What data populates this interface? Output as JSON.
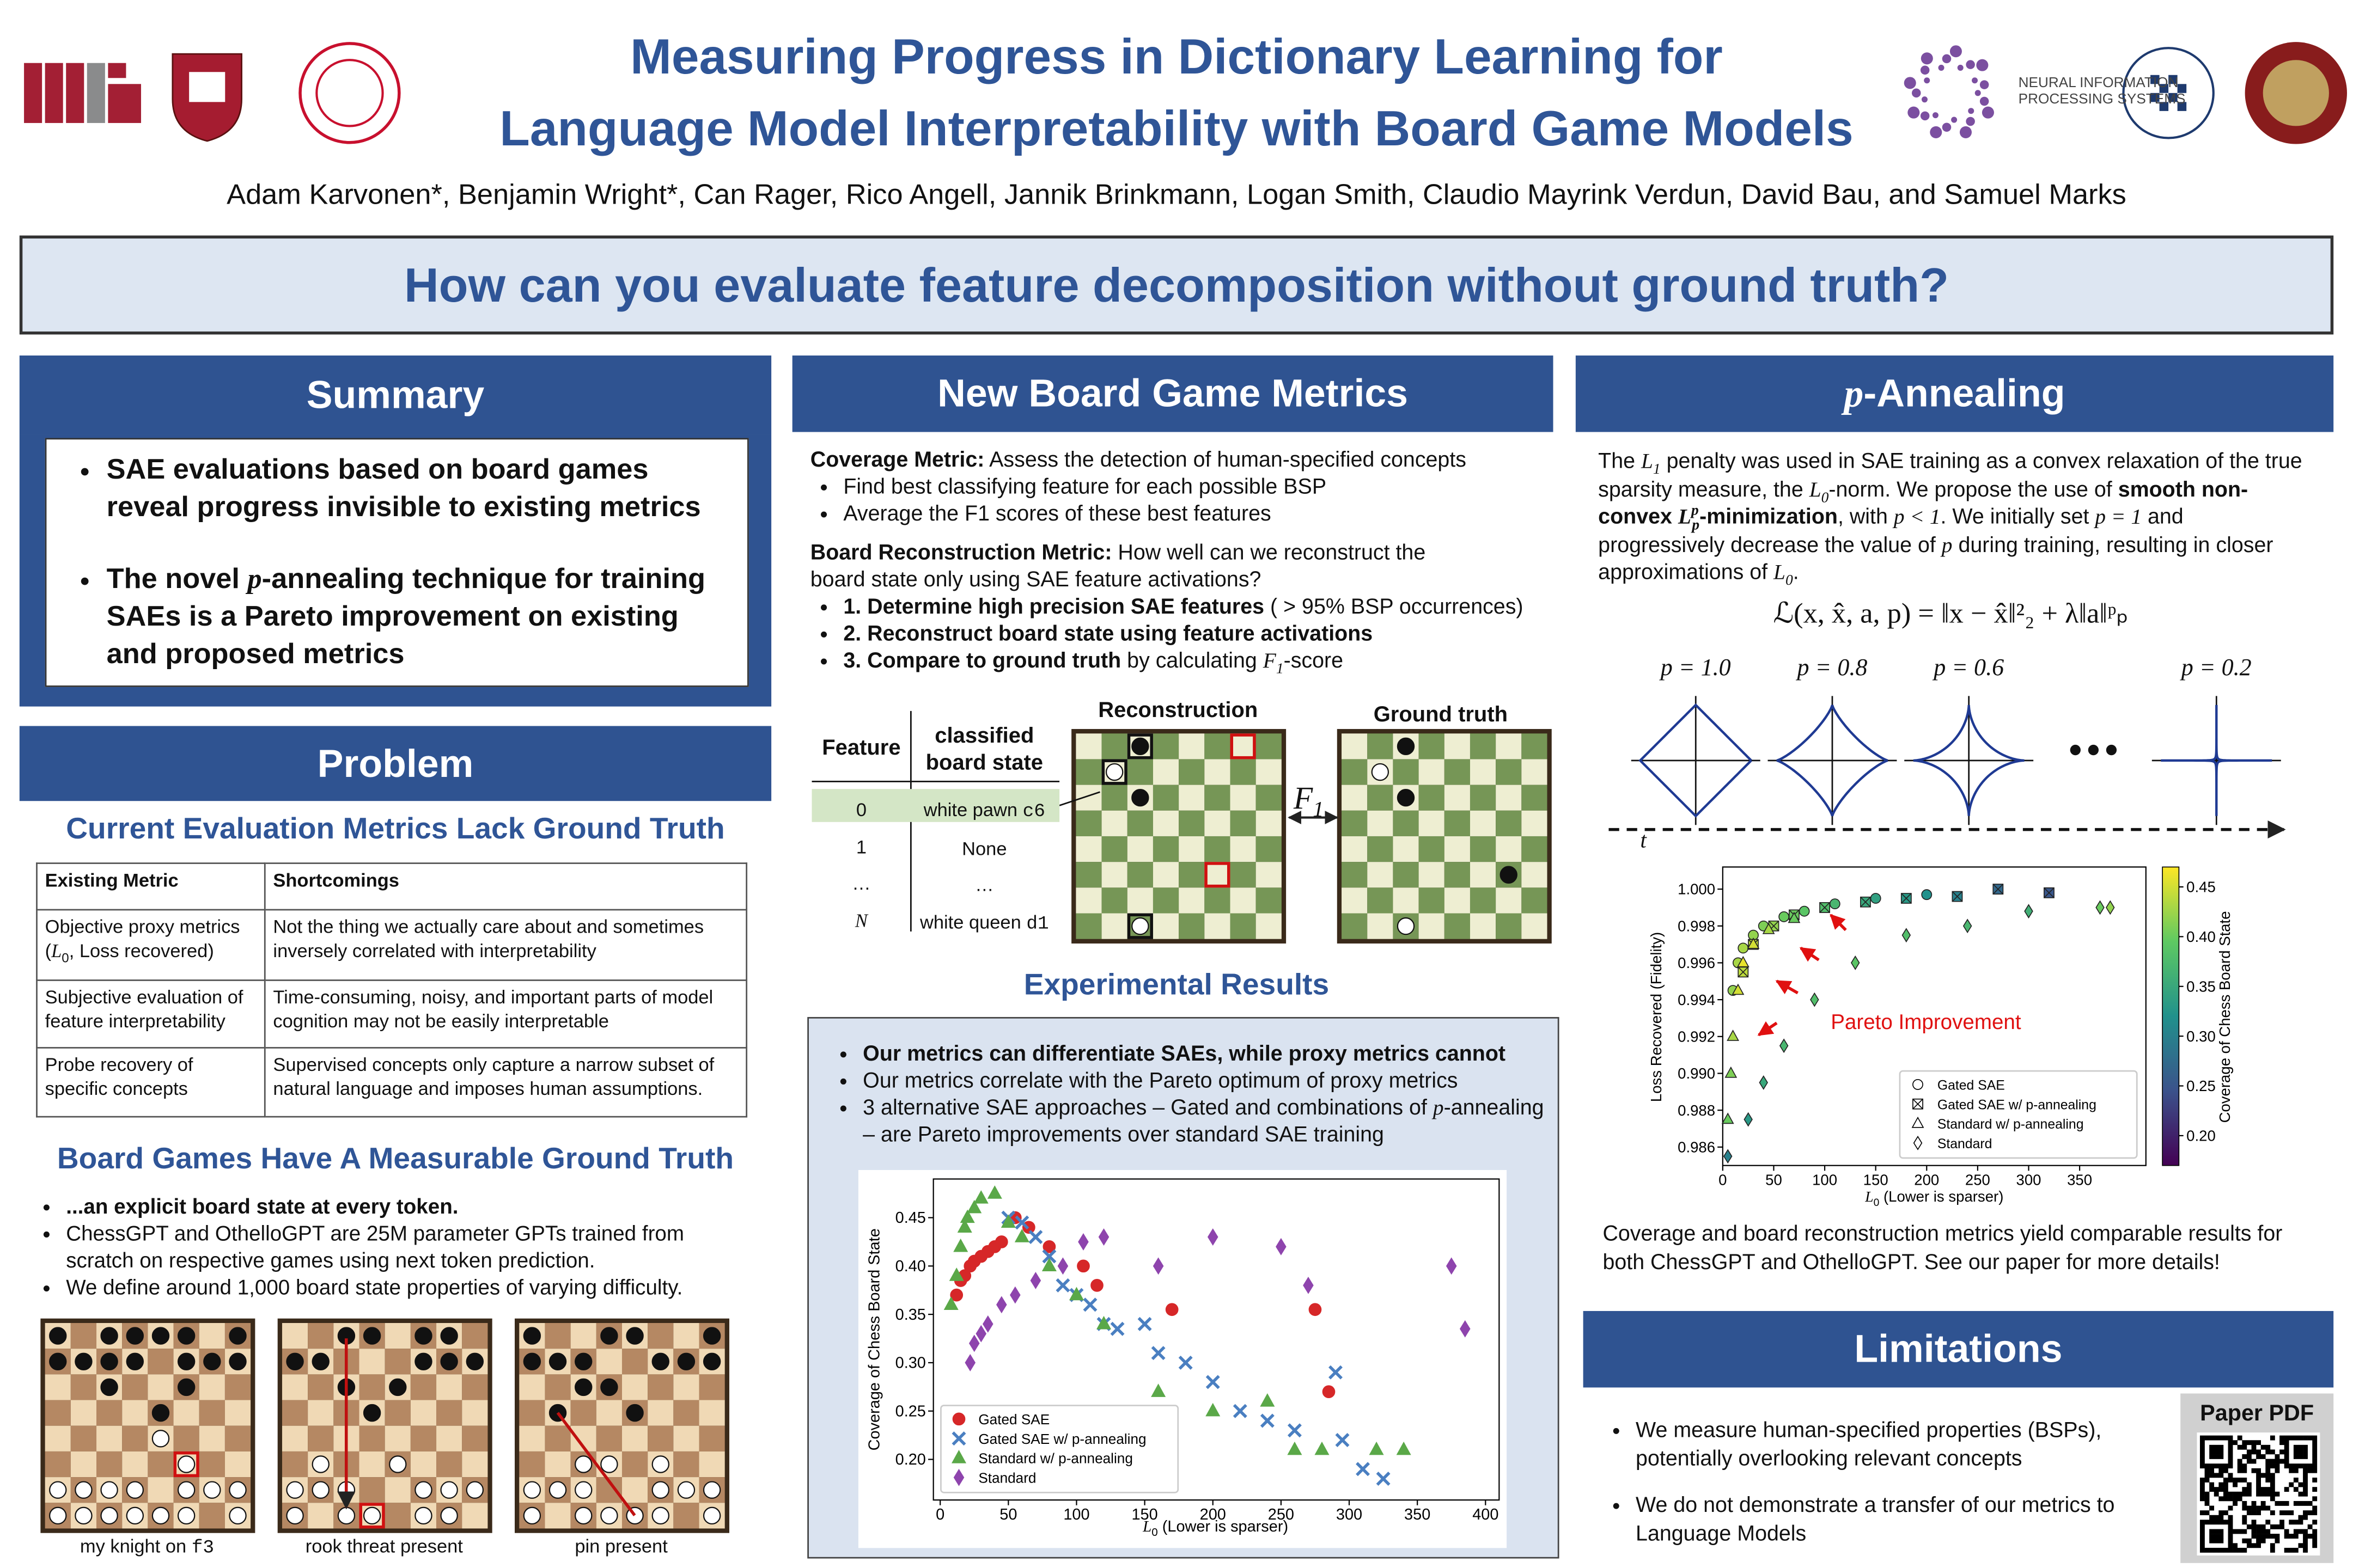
{
  "header": {
    "title": [
      "Measuring Progress in Dictionary Learning for",
      "Language Model Interpretability with Board Game Models"
    ],
    "authors": "Adam Karvonen*, Benjamin Wright*, Can Rager, Rico Angell, Jannik Brinkmann, Logan Smith, Claudio Mayrink Verdun, David Bau, and Samuel Marks"
  },
  "logos": {
    "neurips": [
      "NEURAL INFORMATION",
      "PROCESSING SYSTEMS"
    ]
  },
  "question": "How can you evaluate feature decomposition without ground truth?",
  "summary": {
    "heading": "Summary",
    "bullets": [
      "SAE evaluations based on board games reveal progress invisible to existing metrics",
      [
        "The novel ",
        "p",
        "-annealing technique for training SAEs is a Pareto improvement on existing and proposed metrics"
      ]
    ]
  },
  "problem": {
    "heading": "Problem",
    "subheading_metrics": "Current Evaluation Metrics Lack Ground Truth",
    "table": {
      "header": [
        "Existing Metric",
        "Shortcomings"
      ],
      "rows": [
        [
          [
            "Objective proxy metrics (",
            "L",
            "0",
            ", Loss recovered)"
          ],
          "Not the thing we actually care about and sometimes inversely correlated with interpretability"
        ],
        [
          "Subjective evaluation of feature interpretability",
          "Time-consuming, noisy, and important parts of model cognition may not be easily interpretable"
        ],
        [
          "Probe recovery of specific concepts",
          "Supervised concepts only capture a narrow subset of natural language and imposes human assumptions."
        ]
      ]
    },
    "subheading_games": "Board Games Have A Measurable Ground Truth",
    "bullets": [
      "...an explicit board state at every token.",
      "ChessGPT and OthelloGPT are 25M parameter GPTs trained from scratch on respective games using next token prediction.",
      "We define around 1,000 board state properties of varying difficulty."
    ],
    "captions": [
      [
        "my knight on ",
        "f3"
      ],
      "rook threat present",
      "pin present"
    ]
  },
  "metrics": {
    "heading": "New Board Game Metrics",
    "coverage": {
      "label": "Coverage Metric:",
      "text": " Assess the detection of human-specified concepts",
      "bullets": [
        "Find best classifying feature for each possible BSP",
        "Average the F1 scores of these best features"
      ]
    },
    "reconstruction": {
      "label": "Board Reconstruction Metric:",
      "text": "  How well can we reconstruct the board state only using SAE feature activations?",
      "bullets": [
        [
          "1. Determine high precision SAE features",
          " ( > 95% BSP occurrences)"
        ],
        "2. Reconstruct board state using feature activations",
        [
          "3. Compare to ground truth",
          " by calculating ",
          "F",
          "1",
          "-score"
        ]
      ]
    },
    "table": {
      "header": [
        "Feature",
        [
          "classified",
          "board state"
        ]
      ],
      "rows": [
        [
          "0",
          [
            "white pawn ",
            "c6"
          ]
        ],
        [
          "1",
          "None"
        ],
        [
          "…",
          "…"
        ],
        [
          "N",
          [
            "white queen ",
            "d1"
          ]
        ]
      ]
    },
    "reconstruction_label": "Reconstruction",
    "ground_truth_label": "Ground truth",
    "arrow_label": [
      "F",
      "1"
    ]
  },
  "results": {
    "heading": "Experimental Results",
    "bullets": [
      "Our metrics can differentiate SAEs, while proxy metrics cannot",
      "Our metrics correlate with the Pareto optimum of proxy metrics",
      [
        "3 alternative SAE approaches – Gated and combinations of ",
        "p",
        "-annealing – are Pareto improvements over standard SAE training"
      ]
    ]
  },
  "annealing": {
    "heading": [
      "p",
      "-Annealing"
    ],
    "paragraph": [
      "The ",
      "L",
      "1",
      " penalty was used in SAE training as a convex relaxation of the true sparsity measure, the ",
      "L",
      "0",
      "-norm. We propose the use of ",
      "smooth non-convex ",
      "L",
      "p",
      "p",
      "-minimization",
      ", with ",
      "p < 1",
      ". We initially set ",
      "p = 1",
      " and progressively decrease the value of ",
      "p",
      " during training, resulting in closer approximations of ",
      "L",
      "0",
      "."
    ],
    "formula": "ℒ(x, x̂, a, p) = ‖x − x̂‖²₂ + λ‖a‖ᵖₚ",
    "stages": [
      {
        "value": 1.0,
        "label": "p = 1.0"
      },
      {
        "value": 0.8,
        "label": "p = 0.8"
      },
      {
        "value": 0.6,
        "label": "p = 0.6"
      },
      {
        "value": 0.2,
        "label": "p = 0.2"
      }
    ],
    "time_label": "t",
    "conclusion": "Coverage and board reconstruction metrics yield comparable results for both ChessGPT and OthelloGPT. See our paper for more details!"
  },
  "limitations": {
    "heading": "Limitations",
    "bullets": [
      "We measure human-specified properties (BSPs), potentially overlooking relevant concepts",
      "We do not demonstrate a transfer of our metrics to Language Models"
    ]
  },
  "paper_label": "Paper PDF",
  "chart_data": [
    {
      "type": "scatter",
      "x_label": [
        "L",
        "0",
        " (Lower is sparser)"
      ],
      "y_label": "Coverage of Chess Board State",
      "xlim": [
        -5,
        410
      ],
      "ylim": [
        0.158,
        0.49
      ],
      "xticks": [
        0,
        50,
        100,
        150,
        200,
        250,
        300,
        350,
        400
      ],
      "yticks": [
        {
          "value": 0.2,
          "label": "0.20"
        },
        0.25,
        {
          "value": 0.3,
          "label": "0.30"
        },
        0.35,
        {
          "value": 0.4,
          "label": "0.40"
        },
        0.45
      ],
      "legend": "lower left",
      "series": [
        {
          "name": "Gated SAE",
          "color": "#d62728",
          "marker": "circle",
          "x": [
            12,
            15,
            18,
            22,
            25,
            30,
            35,
            40,
            45,
            55,
            65,
            80,
            105,
            115,
            170,
            275,
            285
          ],
          "values": [
            0.37,
            0.385,
            0.39,
            0.4,
            0.405,
            0.41,
            0.415,
            0.42,
            0.425,
            0.45,
            0.44,
            0.42,
            0.4,
            0.38,
            0.355,
            0.355,
            0.27
          ]
        },
        {
          "name": "Gated SAE w/ p-annealing",
          "color": "#4a7fc1",
          "marker": "x",
          "x": [
            50,
            60,
            70,
            80,
            90,
            100,
            110,
            120,
            130,
            150,
            160,
            180,
            200,
            220,
            240,
            260,
            290,
            295,
            310,
            325
          ],
          "values": [
            0.45,
            0.445,
            0.43,
            0.41,
            0.38,
            0.37,
            0.36,
            0.34,
            0.335,
            0.34,
            0.31,
            0.3,
            0.28,
            0.25,
            0.24,
            0.23,
            0.29,
            0.22,
            0.19,
            0.18
          ]
        },
        {
          "name": "Standard w/ p-annealing",
          "color": "#5aa848",
          "marker": "triangle",
          "x": [
            8,
            12,
            15,
            18,
            20,
            25,
            30,
            40,
            50,
            60,
            80,
            100,
            120,
            160,
            200,
            240,
            260,
            280,
            320,
            340
          ],
          "values": [
            0.36,
            0.39,
            0.42,
            0.44,
            0.45,
            0.46,
            0.47,
            0.475,
            0.445,
            0.43,
            0.4,
            0.37,
            0.34,
            0.27,
            0.25,
            0.26,
            0.21,
            0.21,
            0.21,
            0.21
          ]
        },
        {
          "name": "Standard",
          "color": "#8e44ad",
          "marker": "diamond",
          "x": [
            22,
            25,
            30,
            35,
            45,
            55,
            70,
            90,
            105,
            120,
            160,
            200,
            250,
            270,
            375,
            385
          ],
          "values": [
            0.3,
            0.32,
            0.33,
            0.34,
            0.36,
            0.37,
            0.385,
            0.4,
            0.425,
            0.43,
            0.4,
            0.43,
            0.42,
            0.38,
            0.4,
            0.335
          ]
        }
      ]
    },
    {
      "type": "scatter",
      "x_label": [
        "L",
        "0",
        " (Lower is sparser)"
      ],
      "y_label": "Loss Recovered (Fidelity)",
      "xlim": [
        0,
        415
      ],
      "ylim": [
        0.985,
        1.0012
      ],
      "xticks": [
        0,
        50,
        100,
        150,
        200,
        250,
        300,
        350
      ],
      "yticks": [
        0.986,
        0.988,
        {
          "value": 0.99,
          "label": "0.990"
        },
        0.992,
        0.994,
        0.996,
        0.998,
        {
          "value": 1.0,
          "label": "1.000"
        }
      ],
      "legend": "lower right",
      "annotation": "Pareto Improvement",
      "colorbar": {
        "label": "Coverage of Chess Board State",
        "colormap": "viridis",
        "lim": [
          0.17,
          0.47
        ],
        "ticks": [
          {
            "value": 0.2,
            "label": "0.20"
          },
          0.25,
          {
            "value": 0.3,
            "label": "0.30"
          },
          0.35,
          {
            "value": 0.4,
            "label": "0.40"
          },
          0.45
        ]
      },
      "series": [
        {
          "name": "Gated SAE",
          "marker": "circle",
          "x": [
            10,
            15,
            20,
            30,
            40,
            60,
            80,
            110,
            150,
            200
          ],
          "values": [
            0.9945,
            0.996,
            0.9968,
            0.9975,
            0.998,
            0.9985,
            0.9988,
            0.9992,
            0.9995,
            0.9997
          ],
          "coverage": [
            0.42,
            0.43,
            0.43,
            0.42,
            0.41,
            0.4,
            0.39,
            0.37,
            0.34,
            0.32
          ]
        },
        {
          "name": "Gated SAE w/ p-annealing",
          "marker": "xsquare",
          "x": [
            20,
            30,
            50,
            70,
            100,
            140,
            180,
            230,
            270,
            320
          ],
          "values": [
            0.9955,
            0.997,
            0.998,
            0.9986,
            0.999,
            0.9993,
            0.9995,
            0.9996,
            1.0,
            0.9998
          ],
          "coverage": [
            0.44,
            0.44,
            0.42,
            0.4,
            0.38,
            0.35,
            0.33,
            0.3,
            0.27,
            0.25
          ]
        },
        {
          "name": "Standard w/ p-annealing",
          "marker": "triangle",
          "x": [
            5,
            8,
            10,
            15,
            20,
            30,
            45,
            70
          ],
          "values": [
            0.9875,
            0.99,
            0.992,
            0.9945,
            0.996,
            0.997,
            0.9978,
            0.9984
          ],
          "coverage": [
            0.4,
            0.41,
            0.43,
            0.45,
            0.46,
            0.45,
            0.43,
            0.4
          ]
        },
        {
          "name": "Standard",
          "marker": "diamond",
          "x": [
            5,
            25,
            40,
            60,
            90,
            130,
            180,
            240,
            300,
            370,
            380
          ],
          "values": [
            0.9855,
            0.9875,
            0.9895,
            0.9915,
            0.994,
            0.996,
            0.9975,
            0.998,
            0.9988,
            0.999,
            0.999
          ],
          "coverage": [
            0.3,
            0.33,
            0.35,
            0.37,
            0.38,
            0.39,
            0.38,
            0.37,
            0.36,
            0.4,
            0.42
          ]
        }
      ]
    }
  ]
}
